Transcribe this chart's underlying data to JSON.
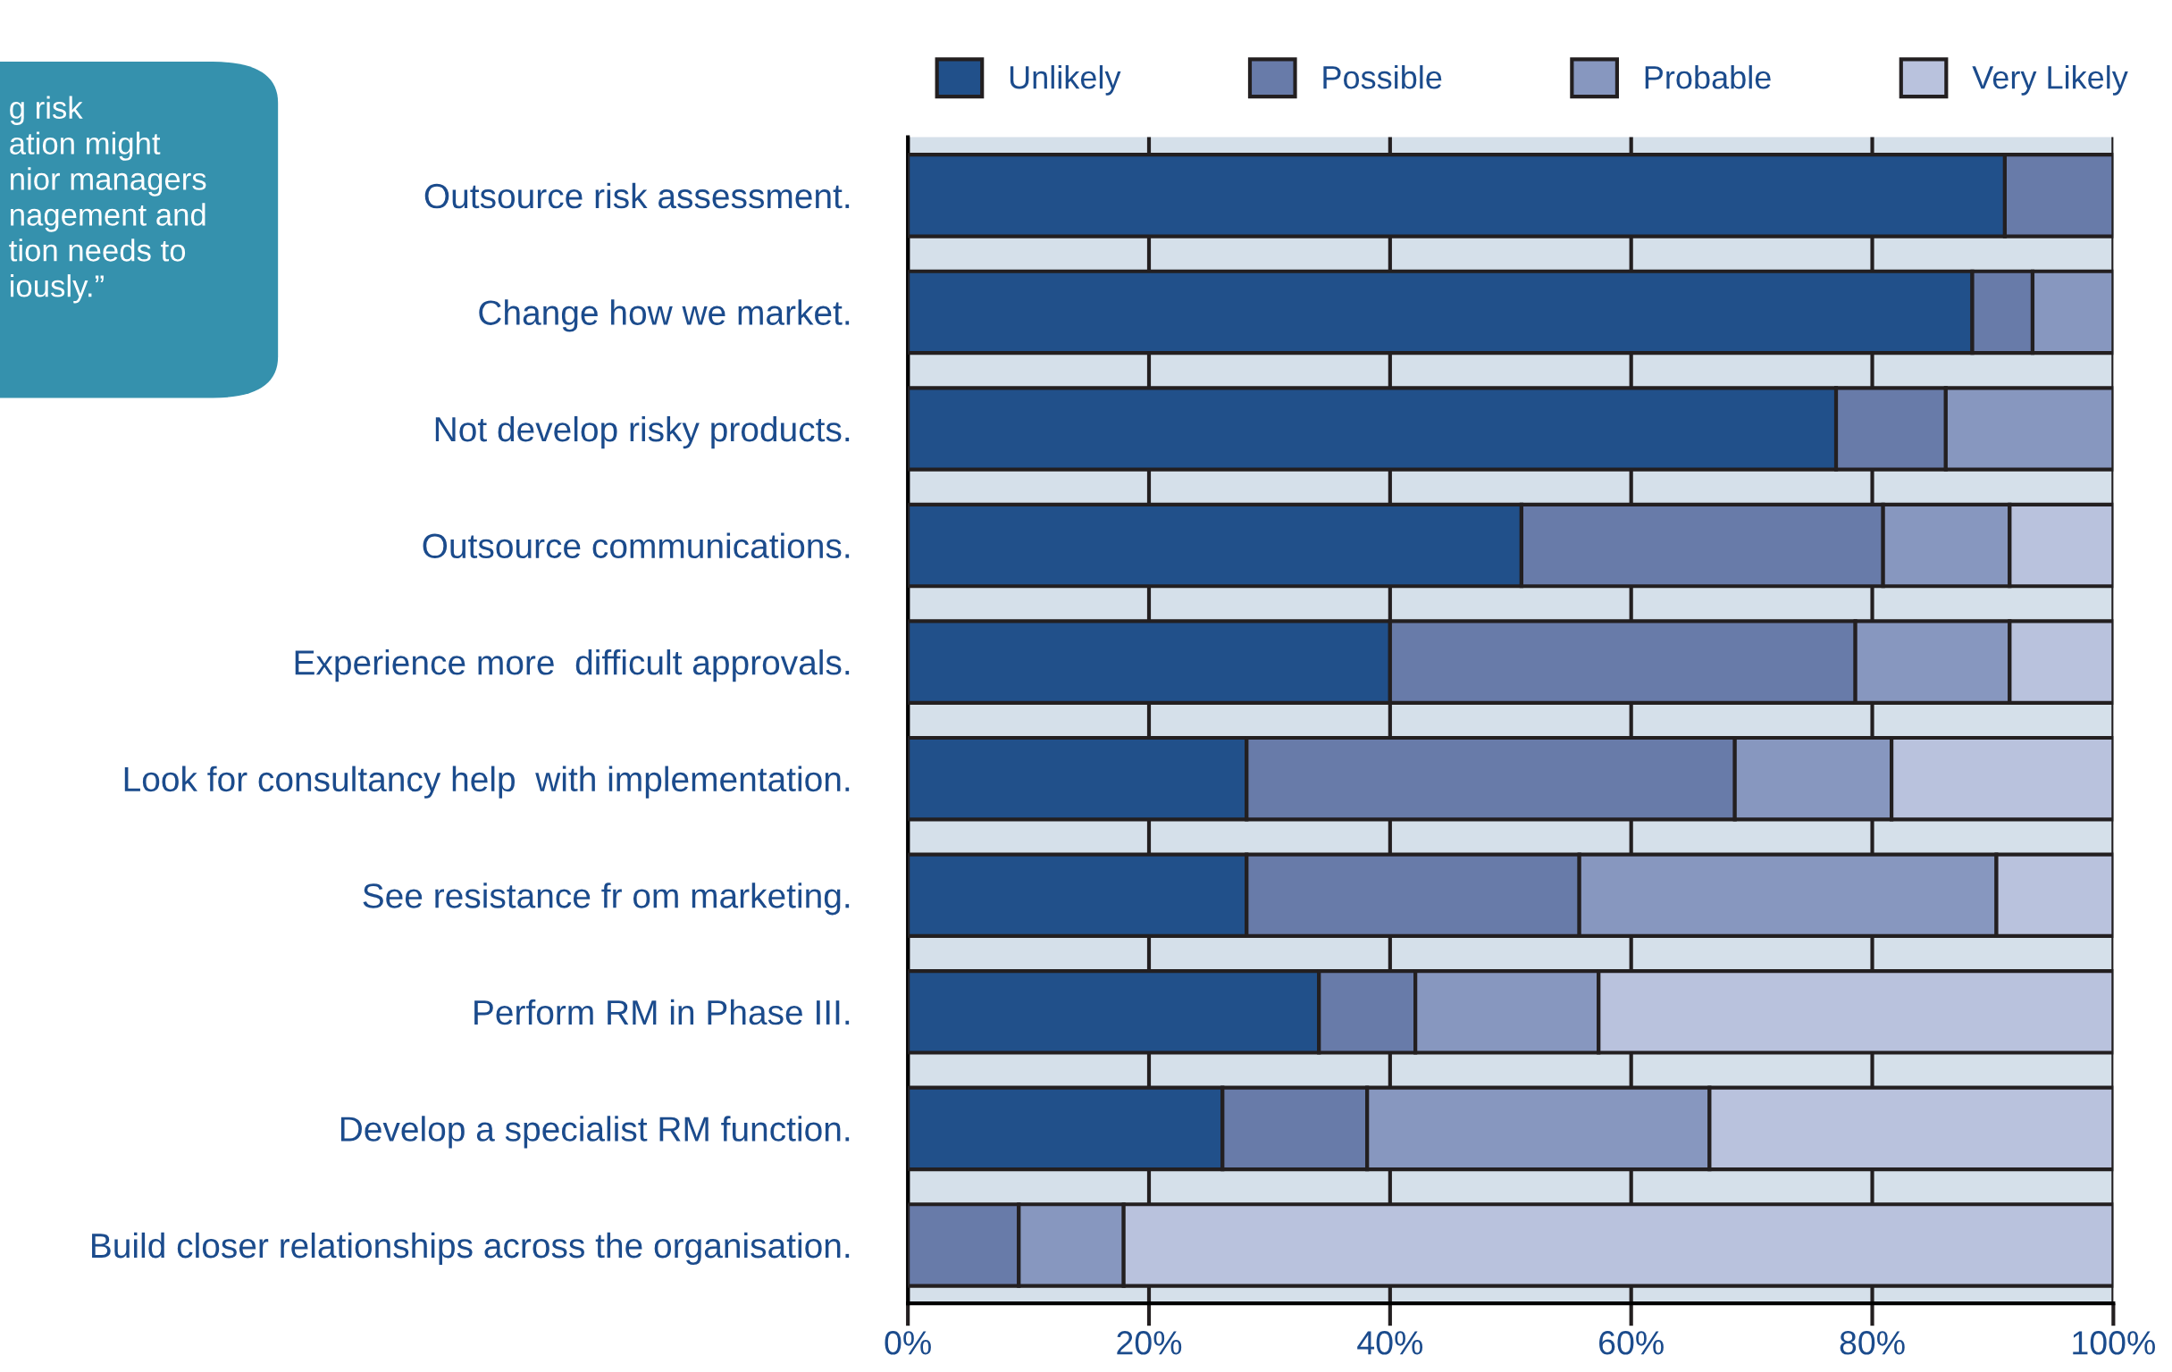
{
  "chart_data": {
    "type": "bar",
    "orientation": "horizontal",
    "stacked": true,
    "categories": [
      "Outsource risk assessment.",
      "Change how we market.",
      "Not develop risky products.",
      "Outsource communications.",
      "Experience more  difficult approvals.",
      "Look for consultancy help  with implementation.",
      "See resistance fr om marketing.",
      "Perform RM in Phase III.",
      "Develop a specialist RM function.",
      "Build closer relationships across the organisation."
    ],
    "series": [
      {
        "name": "Unlikely",
        "color": "#21508a",
        "values": [
          91.0,
          88.3,
          77.0,
          50.9,
          40.0,
          28.1,
          28.1,
          34.1,
          26.1,
          null
        ]
      },
      {
        "name": "Possible",
        "color": "#687ba9",
        "values": [
          9.0,
          5.0,
          9.1,
          30.0,
          38.6,
          40.5,
          27.6,
          8.0,
          12.0,
          9.2
        ]
      },
      {
        "name": "Probable",
        "color": "#8797bf",
        "values": [
          null,
          6.7,
          13.9,
          10.5,
          12.8,
          13.0,
          34.6,
          15.2,
          28.4,
          8.7
        ]
      },
      {
        "name": "Very Likely",
        "color": "#b9c2dd",
        "values": [
          null,
          null,
          null,
          8.6,
          8.6,
          18.4,
          9.7,
          42.7,
          33.5,
          82.1
        ]
      }
    ],
    "xlim": [
      0,
      100
    ],
    "xticks": [
      {
        "value": 0,
        "label": "0%"
      },
      {
        "value": 20,
        "label": "20%"
      },
      {
        "value": 40,
        "label": "40%"
      },
      {
        "value": 60,
        "label": "60%"
      },
      {
        "value": 80,
        "label": "80%"
      },
      {
        "value": 100,
        "label": "100%"
      }
    ],
    "grid": "x",
    "legend": "top",
    "annotations": [
      "g risk\nation might\nnior managers\nnagement and\ntion needs to\niously.”"
    ]
  }
}
